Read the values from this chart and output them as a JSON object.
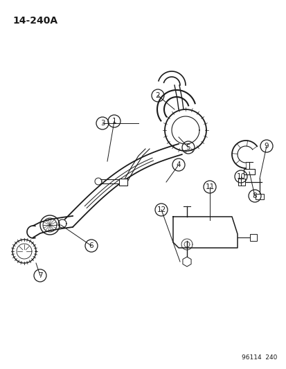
{
  "title": "14-240A",
  "footer": "96114  240",
  "bg_color": "#ffffff",
  "line_color": "#1a1a1a",
  "figsize": [
    4.14,
    5.33
  ],
  "dpi": 100
}
